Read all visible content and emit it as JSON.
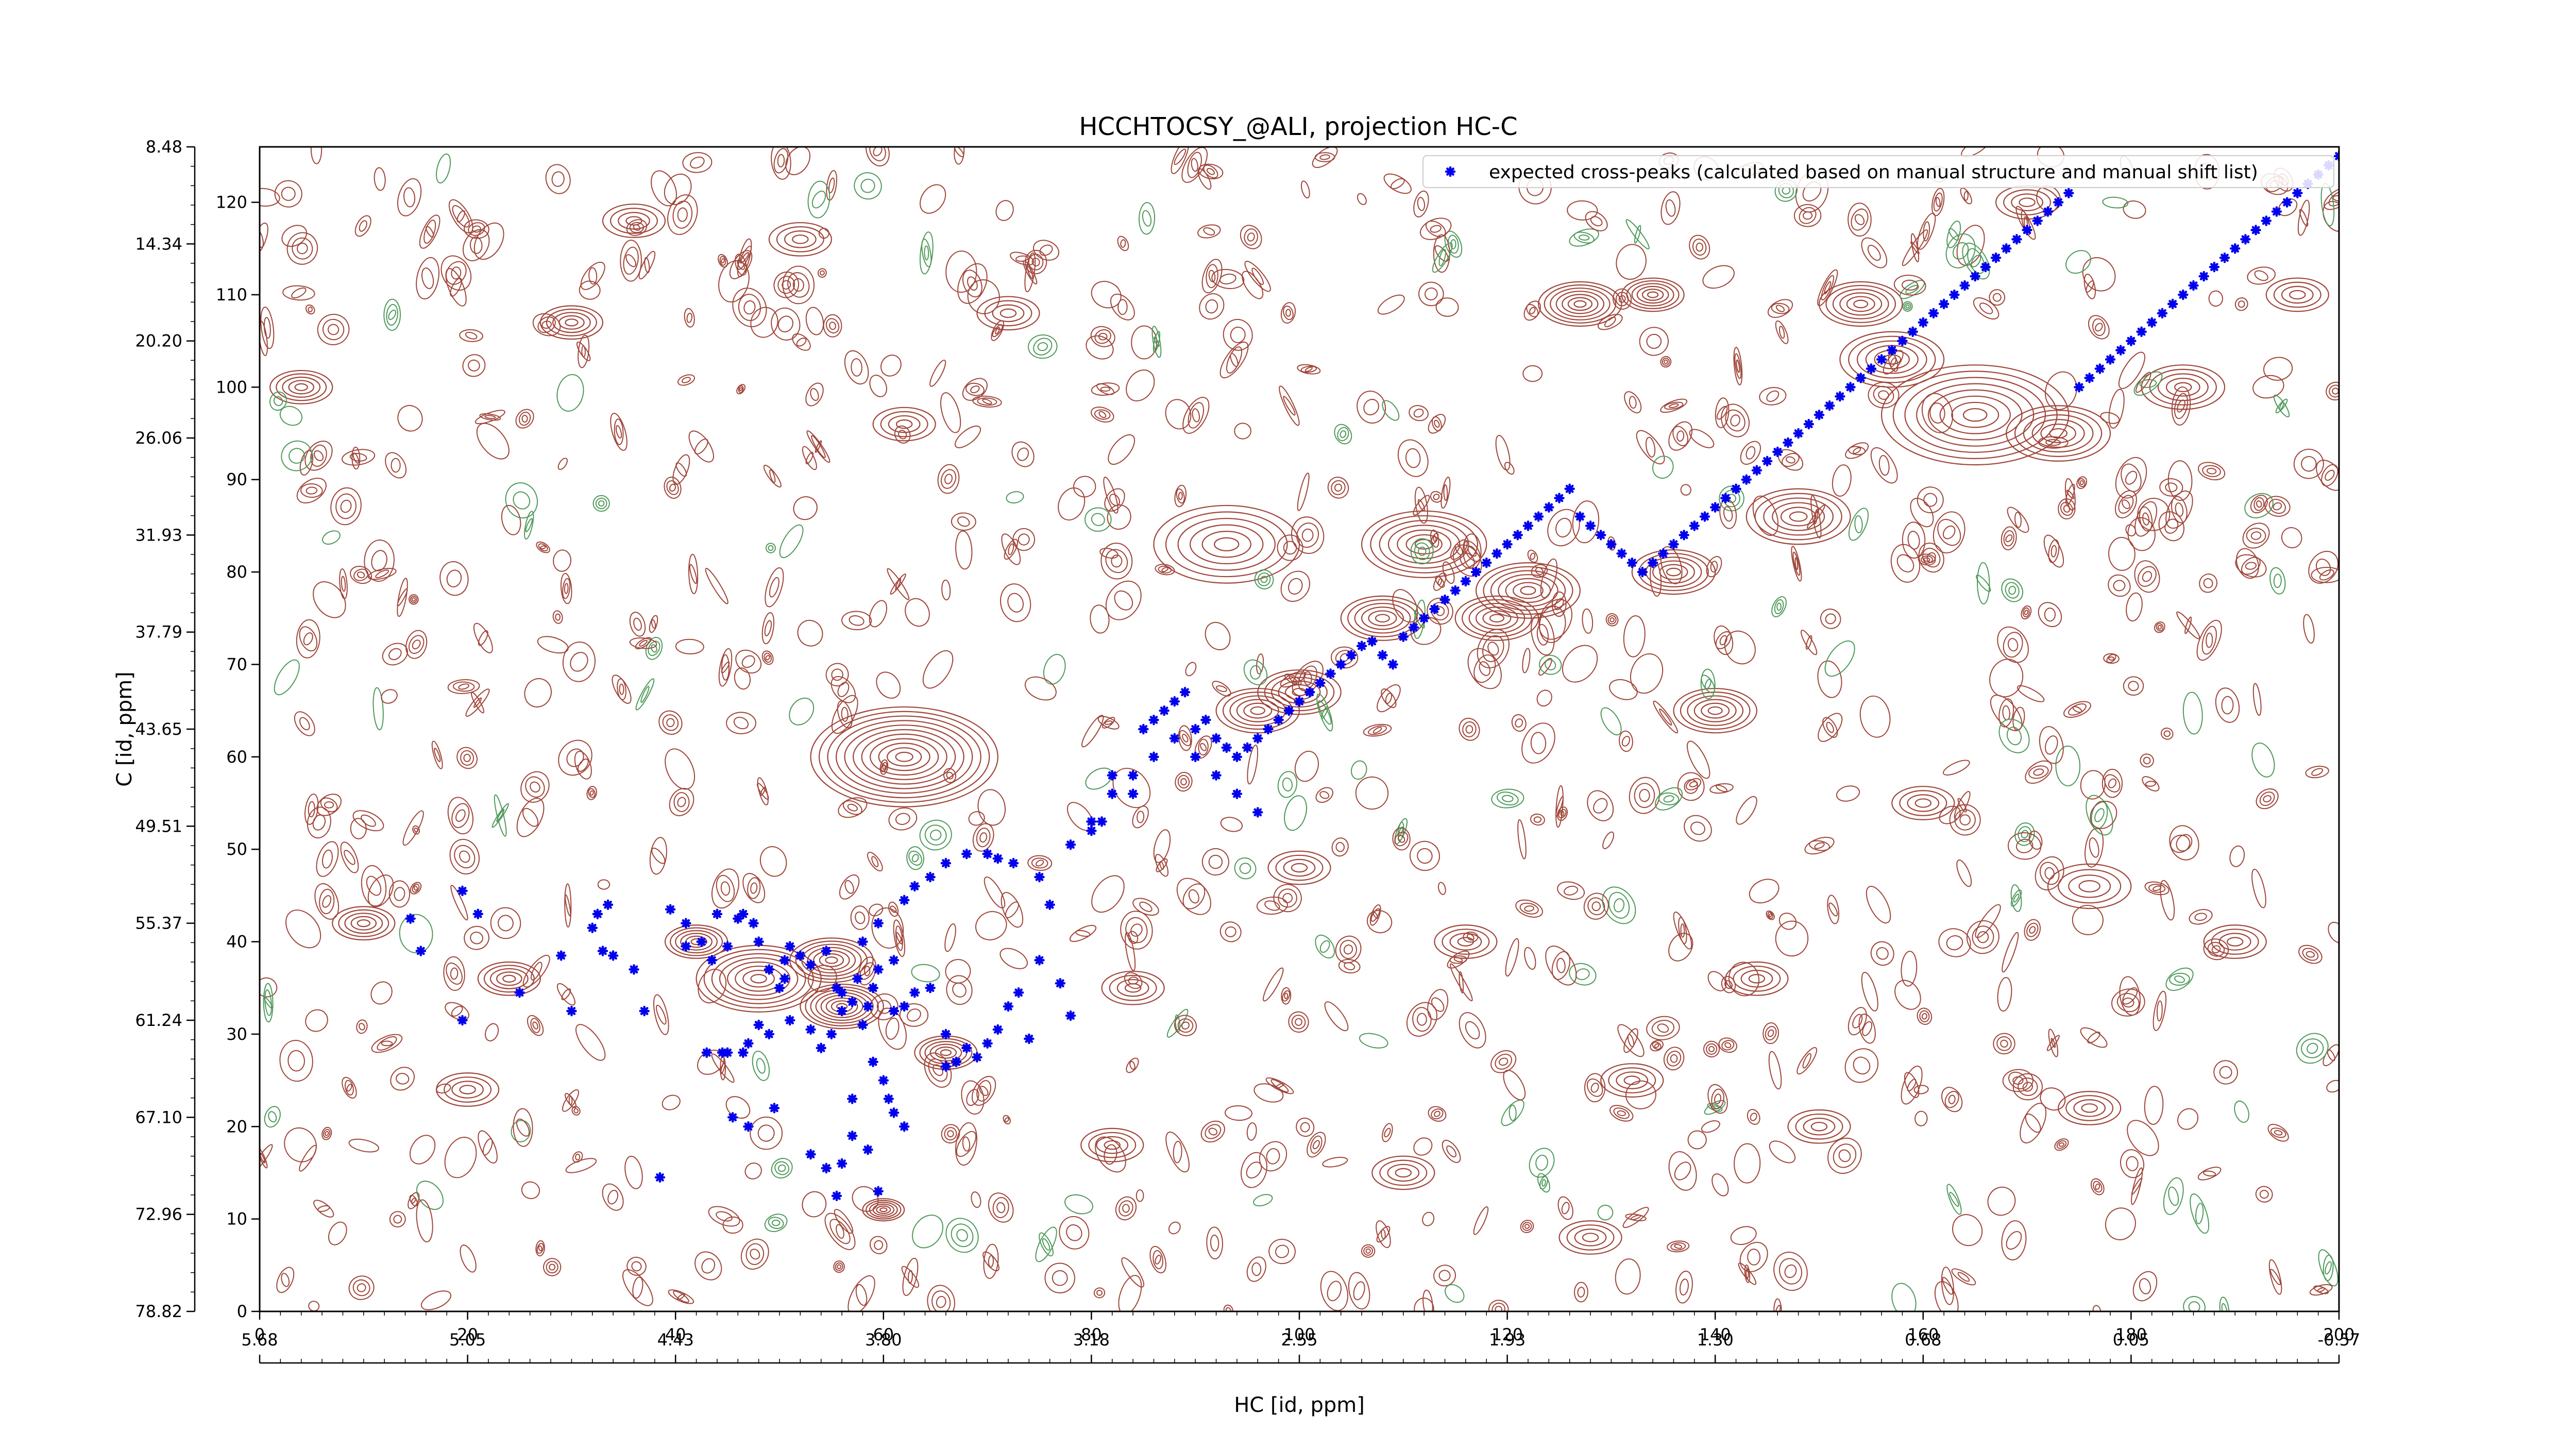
{
  "chart_data": {
    "type": "scatter",
    "title": "HCCHTOCSY_@ALI, projection HC-C",
    "xlabel": "HC [id, ppm]",
    "ylabel": "C [id, ppm]",
    "xlim": [
      0,
      200
    ],
    "ylim": [
      0,
      126
    ],
    "x_ticks": [
      0,
      20,
      40,
      60,
      80,
      100,
      120,
      140,
      160,
      180,
      200
    ],
    "x_tick_labels": [
      "0",
      "20",
      "40",
      "60",
      "80",
      "100",
      "120",
      "140",
      "160",
      "180",
      "200"
    ],
    "y_ticks": [
      0,
      10,
      20,
      30,
      40,
      50,
      60,
      70,
      80,
      90,
      100,
      110,
      120
    ],
    "y_tick_labels": [
      "0",
      "10",
      "20",
      "30",
      "40",
      "50",
      "60",
      "70",
      "80",
      "90",
      "100",
      "110",
      "120"
    ],
    "ppm_x_ticks": [
      0,
      20,
      40,
      60,
      80,
      100,
      120,
      140,
      160,
      180,
      200
    ],
    "ppm_x_tick_labels": [
      "5.68",
      "5.05",
      "4.43",
      "3.80",
      "3.18",
      "2.55",
      "1.93",
      "1.30",
      "0.68",
      "0.05",
      "-0.57"
    ],
    "ppm_y_ticks": [
      0,
      10.5,
      21,
      31.5,
      42,
      52.5,
      63,
      73.5,
      84,
      94.5,
      105,
      115.5,
      126
    ],
    "ppm_y_tick_labels": [
      "78.82",
      "72.96",
      "67.10",
      "61.24",
      "55.37",
      "49.51",
      "43.65",
      "37.79",
      "31.93",
      "26.06",
      "20.20",
      "14.34",
      "8.48"
    ],
    "legend": {
      "position": "top-right",
      "entries": [
        "expected cross-peaks (calculated based on manual structure and manual shift list)"
      ]
    },
    "grid": false,
    "colors": {
      "positive_contours": "#a0463a",
      "negative_contours": "#4f9a5b",
      "peaks": "#0000ee"
    },
    "contour_peaks": [
      [
        62,
        60,
        9,
        1.4
      ],
      [
        48,
        36,
        6,
        1.0
      ],
      [
        56,
        33,
        4,
        1.0
      ],
      [
        66,
        28,
        3,
        0.8
      ],
      [
        60,
        11,
        2,
        0.7
      ],
      [
        42,
        40,
        3,
        0.8
      ],
      [
        55,
        38,
        4,
        0.9
      ],
      [
        93,
        83,
        7,
        0.8
      ],
      [
        112,
        83,
        6,
        0.9
      ],
      [
        122,
        78,
        5,
        0.9
      ],
      [
        119,
        75,
        4,
        0.8
      ],
      [
        136,
        80,
        4,
        0.8
      ],
      [
        148,
        86,
        5,
        0.7
      ],
      [
        165,
        97,
        9,
        1.0
      ],
      [
        173,
        95,
        5,
        0.8
      ],
      [
        157,
        103,
        5,
        0.8
      ],
      [
        154,
        109,
        4,
        0.8
      ],
      [
        127,
        109,
        4,
        0.9
      ],
      [
        185,
        100,
        4,
        0.6
      ],
      [
        100,
        67,
        4,
        0.8
      ],
      [
        96,
        65,
        4,
        0.7
      ],
      [
        140,
        65,
        4,
        0.7
      ],
      [
        134,
        110,
        3,
        0.7
      ],
      [
        108,
        75,
        4,
        0.7
      ],
      [
        24,
        36,
        3,
        0.6
      ],
      [
        10,
        42,
        3,
        0.6
      ],
      [
        4,
        100,
        3,
        0.6
      ],
      [
        30,
        107,
        3,
        0.6
      ],
      [
        20,
        24,
        3,
        0.5
      ],
      [
        84,
        35,
        3,
        0.5
      ],
      [
        190,
        40,
        3,
        0.5
      ],
      [
        176,
        46,
        4,
        0.5
      ],
      [
        160,
        55,
        3,
        0.5
      ],
      [
        150,
        20,
        3,
        0.5
      ],
      [
        132,
        25,
        3,
        0.5
      ],
      [
        110,
        15,
        3,
        0.5
      ],
      [
        82,
        18,
        3,
        0.5
      ],
      [
        72,
        108,
        3,
        0.5
      ],
      [
        52,
        116,
        3,
        0.5
      ],
      [
        36,
        118,
        3,
        0.5
      ],
      [
        196,
        110,
        3,
        0.5
      ],
      [
        170,
        120,
        3,
        0.5
      ],
      [
        116,
        40,
        3,
        0.5
      ],
      [
        100,
        48,
        3,
        0.5
      ],
      [
        144,
        36,
        3,
        0.5
      ],
      [
        176,
        22,
        3,
        0.5
      ],
      [
        128,
        8,
        3,
        0.5
      ],
      [
        62,
        96,
        3,
        0.5
      ]
    ],
    "series": [
      {
        "name": "expected cross-peaks (calculated based on manual structure and manual shift list)",
        "marker": "x",
        "points": [
          [
            14.5,
            42.5
          ],
          [
            15.5,
            39
          ],
          [
            19.5,
            45.5
          ],
          [
            21,
            43
          ],
          [
            19.5,
            31.5
          ],
          [
            25,
            34.5
          ],
          [
            29,
            38.5
          ],
          [
            30,
            32.5
          ],
          [
            32,
            41.5
          ],
          [
            33,
            39
          ],
          [
            32.5,
            43
          ],
          [
            33.5,
            44
          ],
          [
            34,
            38.5
          ],
          [
            36,
            37
          ],
          [
            37,
            32.5
          ],
          [
            39.5,
            43.5
          ],
          [
            38.5,
            14.5
          ],
          [
            41,
            42
          ],
          [
            41,
            39.5
          ],
          [
            42.5,
            40
          ],
          [
            43.5,
            38
          ],
          [
            44,
            43
          ],
          [
            45,
            39.5
          ],
          [
            46,
            42.5
          ],
          [
            46.5,
            43
          ],
          [
            47.5,
            42
          ],
          [
            48,
            40
          ],
          [
            49,
            37
          ],
          [
            50,
            35
          ],
          [
            50.5,
            38
          ],
          [
            50.5,
            36
          ],
          [
            52,
            38.5
          ],
          [
            51,
            39.5
          ],
          [
            53,
            37.5
          ],
          [
            54.5,
            39
          ],
          [
            49,
            30
          ],
          [
            48,
            31
          ],
          [
            47,
            29
          ],
          [
            46.5,
            28
          ],
          [
            45,
            28
          ],
          [
            44.5,
            28
          ],
          [
            43,
            28
          ],
          [
            51,
            31.5
          ],
          [
            53,
            30.5
          ],
          [
            54,
            28.5
          ],
          [
            55,
            30
          ],
          [
            55.5,
            35
          ],
          [
            56,
            32.5
          ],
          [
            56,
            34.5
          ],
          [
            57,
            33.5
          ],
          [
            57.5,
            36
          ],
          [
            58,
            31
          ],
          [
            58.5,
            33
          ],
          [
            59,
            35
          ],
          [
            59.5,
            37
          ],
          [
            59,
            27
          ],
          [
            60,
            25
          ],
          [
            60.5,
            23
          ],
          [
            61,
            21.5
          ],
          [
            62,
            20
          ],
          [
            61,
            32.5
          ],
          [
            62,
            33
          ],
          [
            63,
            34.5
          ],
          [
            64.5,
            35
          ],
          [
            66,
            30
          ],
          [
            66,
            26.5
          ],
          [
            68,
            28.5
          ],
          [
            69,
            27.5
          ],
          [
            67,
            27
          ],
          [
            70,
            29
          ],
          [
            71,
            30.5
          ],
          [
            72,
            33
          ],
          [
            73,
            34.5
          ],
          [
            75,
            38
          ],
          [
            77,
            35.5
          ],
          [
            78,
            32
          ],
          [
            74,
            29.5
          ],
          [
            58,
            40
          ],
          [
            59.5,
            42
          ],
          [
            61,
            38
          ],
          [
            62,
            44.5
          ],
          [
            63,
            46
          ],
          [
            64.5,
            47
          ],
          [
            66,
            48.5
          ],
          [
            68,
            49.5
          ],
          [
            70,
            49.5
          ],
          [
            71,
            49
          ],
          [
            72.5,
            48.5
          ],
          [
            75,
            47
          ],
          [
            76,
            44
          ],
          [
            78,
            50.5
          ],
          [
            80,
            53
          ],
          [
            82,
            56
          ],
          [
            84,
            58
          ],
          [
            86,
            60
          ],
          [
            88,
            62
          ],
          [
            90,
            60
          ],
          [
            92,
            58
          ],
          [
            94,
            56
          ],
          [
            96,
            54
          ],
          [
            57,
            19
          ],
          [
            58.5,
            17.5
          ],
          [
            59.5,
            13
          ],
          [
            55.5,
            12.5
          ],
          [
            54.5,
            15.5
          ],
          [
            53,
            17
          ],
          [
            49.5,
            22
          ],
          [
            47,
            20
          ],
          [
            45.5,
            21
          ],
          [
            56,
            16
          ],
          [
            57,
            23
          ],
          [
            81,
            53
          ],
          [
            80,
            52
          ],
          [
            84,
            56
          ],
          [
            82,
            58
          ],
          [
            85,
            63
          ],
          [
            86,
            64
          ],
          [
            87,
            65
          ],
          [
            88,
            66
          ],
          [
            89,
            67
          ],
          [
            90,
            63
          ],
          [
            91,
            64
          ],
          [
            92,
            62
          ],
          [
            93,
            61
          ],
          [
            94,
            60
          ],
          [
            95,
            61
          ],
          [
            96,
            62
          ],
          [
            97,
            63
          ],
          [
            98,
            64
          ],
          [
            99,
            65
          ],
          [
            100,
            66
          ],
          [
            101,
            67
          ],
          [
            102,
            68
          ],
          [
            103,
            69
          ],
          [
            104,
            70
          ],
          [
            105,
            71
          ],
          [
            106,
            72
          ],
          [
            107,
            72.5
          ],
          [
            108,
            71
          ],
          [
            109,
            70
          ],
          [
            110,
            73
          ],
          [
            111,
            74
          ],
          [
            112,
            75
          ],
          [
            113,
            76
          ],
          [
            114,
            77
          ],
          [
            115,
            78
          ],
          [
            116,
            79
          ],
          [
            117,
            80
          ],
          [
            118,
            81
          ],
          [
            119,
            82
          ],
          [
            120,
            83
          ],
          [
            121,
            84
          ],
          [
            122,
            85
          ],
          [
            123,
            86
          ],
          [
            124,
            87
          ],
          [
            125,
            88
          ],
          [
            126,
            89
          ],
          [
            127,
            86
          ],
          [
            128,
            85
          ],
          [
            129,
            84
          ],
          [
            130,
            83
          ],
          [
            131,
            82
          ],
          [
            132,
            81
          ],
          [
            133,
            80
          ],
          [
            134,
            81
          ],
          [
            135,
            82
          ],
          [
            136,
            83
          ],
          [
            137,
            84
          ],
          [
            138,
            85
          ],
          [
            139,
            86
          ],
          [
            140,
            87
          ],
          [
            141,
            88
          ],
          [
            142,
            89
          ],
          [
            143,
            90
          ],
          [
            144,
            91
          ],
          [
            145,
            92
          ],
          [
            146,
            93
          ],
          [
            147,
            94
          ],
          [
            148,
            95
          ],
          [
            149,
            96
          ],
          [
            150,
            97
          ],
          [
            151,
            98
          ],
          [
            152,
            99
          ],
          [
            153,
            100
          ],
          [
            154,
            101
          ],
          [
            155,
            102
          ],
          [
            156,
            103
          ],
          [
            157,
            104
          ],
          [
            158,
            105
          ],
          [
            159,
            106
          ],
          [
            160,
            107
          ],
          [
            161,
            108
          ],
          [
            162,
            109
          ],
          [
            163,
            110
          ],
          [
            164,
            111
          ],
          [
            165,
            112
          ],
          [
            166,
            113
          ],
          [
            167,
            114
          ],
          [
            168,
            115
          ],
          [
            169,
            116
          ],
          [
            170,
            117
          ],
          [
            171,
            118
          ],
          [
            172,
            119
          ],
          [
            173,
            120
          ],
          [
            174,
            121
          ],
          [
            175,
            100
          ],
          [
            176,
            101
          ],
          [
            177,
            102
          ],
          [
            178,
            103
          ],
          [
            179,
            104
          ],
          [
            180,
            105
          ],
          [
            181,
            106
          ],
          [
            182,
            107
          ],
          [
            183,
            108
          ],
          [
            184,
            109
          ],
          [
            185,
            110
          ],
          [
            186,
            111
          ],
          [
            187,
            112
          ],
          [
            188,
            113
          ],
          [
            189,
            114
          ],
          [
            190,
            115
          ],
          [
            191,
            116
          ],
          [
            192,
            117
          ],
          [
            193,
            118
          ],
          [
            194,
            119
          ],
          [
            195,
            120
          ],
          [
            196,
            121
          ],
          [
            197,
            122
          ],
          [
            198,
            123
          ],
          [
            199,
            124
          ],
          [
            200,
            125
          ]
        ]
      }
    ]
  }
}
